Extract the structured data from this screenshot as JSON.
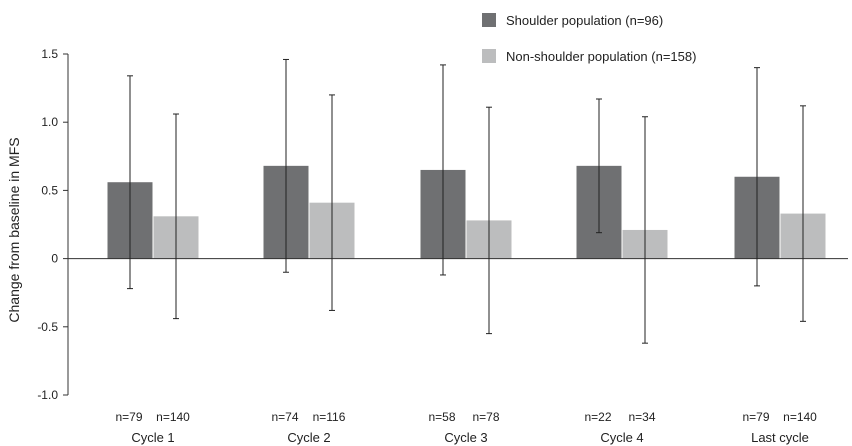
{
  "chart_data": {
    "type": "bar",
    "categories": [
      "Cycle 1",
      "Cycle 2",
      "Cycle 3",
      "Cycle 4",
      "Last cycle"
    ],
    "series": [
      {
        "name": "Shoulder population (n=96)",
        "color": "#6f7072",
        "values": [
          0.56,
          0.68,
          0.65,
          0.68,
          0.6
        ],
        "error_low": [
          -0.22,
          -0.1,
          -0.12,
          0.19,
          -0.2
        ],
        "error_high": [
          1.34,
          1.46,
          1.42,
          1.17,
          1.4
        ],
        "n_labels": [
          "n=79",
          "n=74",
          "n=58",
          "n=22",
          "n=79"
        ]
      },
      {
        "name": "Non-shoulder population (n=158)",
        "color": "#bcbdbe",
        "values": [
          0.31,
          0.41,
          0.28,
          0.21,
          0.33
        ],
        "error_low": [
          -0.44,
          -0.38,
          -0.55,
          -0.62,
          -0.46
        ],
        "error_high": [
          1.06,
          1.2,
          1.11,
          1.04,
          1.12
        ],
        "n_labels": [
          "n=140",
          "n=116",
          "n=78",
          "n=34",
          "n=140"
        ]
      }
    ],
    "xlabel": "",
    "ylabel": "Change from baseline in MFS",
    "ylim": [
      -1.0,
      1.5
    ],
    "yticks": [
      -1.0,
      -0.5,
      0,
      0.5,
      1.0,
      1.5
    ],
    "ytick_labels": [
      "-1.0",
      "-0.5",
      "0",
      "0.5",
      "1.0",
      "1.5"
    ],
    "grid": false,
    "legend_position": "top-right"
  }
}
